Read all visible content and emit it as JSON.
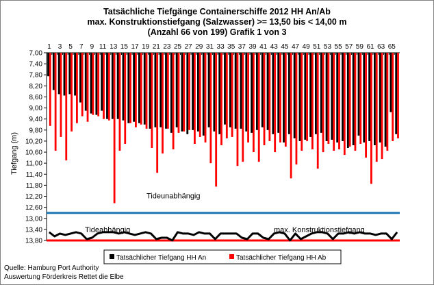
{
  "chart_data": {
    "type": "bar",
    "title_lines": [
      "Tatsächliche Tiefgänge Containerschiffe  2012 HH An/Ab",
      "max. Konstruktionstiefgang  (Salzwasser)  >= 13,50 bis < 14,00 m",
      "(Anzahl 66 von 199) Grafik 1 von 3"
    ],
    "ylabel": "Tiefgang (m)",
    "ylim": [
      7.0,
      13.8
    ],
    "y_inverted": true,
    "yticks": [
      "7,00",
      "7,40",
      "7,80",
      "8,20",
      "8,60",
      "9,00",
      "9,40",
      "9,80",
      "10,20",
      "10,60",
      "11,00",
      "11,40",
      "11,80",
      "12,20",
      "12,60",
      "13,00",
      "13,40",
      "13,80"
    ],
    "xticks": [
      "1",
      "3",
      "5",
      "7",
      "9",
      "11",
      "13",
      "15",
      "17",
      "19",
      "21",
      "23",
      "25",
      "27",
      "29",
      "31",
      "33",
      "35",
      "37",
      "39",
      "41",
      "43",
      "45",
      "47",
      "49",
      "51",
      "53",
      "55",
      "57",
      "59",
      "61",
      "63",
      "65"
    ],
    "series": [
      {
        "name": "Tatsächlicher Tiefgang HH An",
        "color": "#000000",
        "values": [
          7.85,
          8.35,
          8.5,
          8.55,
          8.5,
          8.55,
          8.8,
          9.1,
          9.2,
          9.25,
          9.1,
          9.4,
          9.4,
          9.4,
          9.45,
          9.55,
          9.5,
          9.55,
          9.6,
          9.75,
          9.7,
          9.7,
          9.75,
          9.9,
          9.7,
          9.85,
          9.95,
          9.8,
          9.85,
          10.0,
          9.7,
          9.85,
          9.95,
          9.6,
          9.7,
          9.75,
          9.75,
          9.85,
          9.9,
          9.8,
          9.7,
          9.8,
          9.95,
          9.9,
          10.25,
          9.95,
          10.1,
          10.2,
          10.15,
          10.05,
          9.95,
          9.9,
          10.2,
          10.15,
          10.25,
          10.2,
          10.45,
          10.35,
          10.0,
          10.25,
          10.2,
          10.35,
          10.25,
          10.4,
          9.15,
          9.95
        ]
      },
      {
        "name": "Tatsächlicher Tiefgang HH Ab",
        "color": "#ff0000",
        "values": [
          9.65,
          10.55,
          10.05,
          10.9,
          9.85,
          9.55,
          9.3,
          9.5,
          9.25,
          9.3,
          9.4,
          9.45,
          12.45,
          10.55,
          10.3,
          9.55,
          9.7,
          9.6,
          9.75,
          10.45,
          11.35,
          10.65,
          9.75,
          10.5,
          9.9,
          9.85,
          9.8,
          10.3,
          10.05,
          10.25,
          11.0,
          11.85,
          10.35,
          10.1,
          10.05,
          11.1,
          10.95,
          10.25,
          10.6,
          10.95,
          10.35,
          10.2,
          10.6,
          10.25,
          10.4,
          11.55,
          11.05,
          10.55,
          10.2,
          10.5,
          11.2,
          10.6,
          10.3,
          10.55,
          10.5,
          10.7,
          10.4,
          10.55,
          10.3,
          10.8,
          11.75,
          10.95,
          10.85,
          10.55,
          10.2,
          10.1
        ]
      }
    ],
    "reference_lines": [
      {
        "name": "Tideunabhängig",
        "value": 12.8,
        "color": "#1f77b4"
      },
      {
        "name": "max. Konstruktionstiefgang",
        "value": 13.8,
        "color": "#ff0000"
      }
    ],
    "tide_dependent": {
      "name": "Tideabhängig",
      "color": "#000000",
      "values": [
        13.5,
        13.65,
        13.55,
        13.6,
        13.55,
        13.5,
        13.55,
        13.75,
        13.7,
        13.55,
        13.5,
        13.5,
        13.5,
        13.55,
        13.5,
        13.55,
        13.6,
        13.55,
        13.5,
        13.55,
        13.75,
        13.7,
        13.7,
        13.8,
        13.5,
        13.55,
        13.55,
        13.6,
        13.5,
        13.55,
        13.55,
        13.75,
        13.55,
        13.55,
        13.55,
        13.55,
        13.7,
        13.75,
        13.55,
        13.55,
        13.7,
        13.75,
        13.55,
        13.5,
        13.55,
        13.8,
        13.55,
        13.75,
        13.65,
        13.55,
        13.5,
        13.5,
        13.55,
        13.75,
        13.55,
        13.55,
        13.5,
        13.55,
        13.5,
        13.55,
        13.55,
        13.6,
        13.55,
        13.55,
        13.75,
        13.5
      ]
    },
    "grid": false,
    "legend_position": "bottom"
  },
  "source_lines": [
    "Quelle: Hamburg Port Authority",
    "Auswertung Förderkreis Rettet die Elbe"
  ]
}
